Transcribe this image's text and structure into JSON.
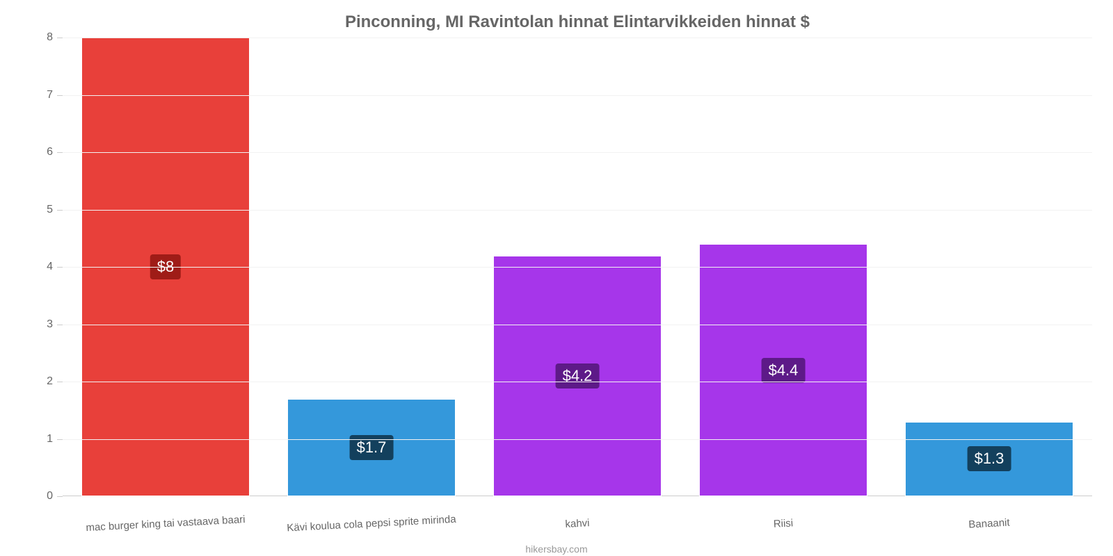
{
  "chart": {
    "type": "bar",
    "title": "Pinconning, MI Ravintolan hinnat Elintarvikkeiden hinnat $",
    "title_color": "#666666",
    "title_fontsize": 24,
    "background_color": "#ffffff",
    "grid_color": "#f2f2f2",
    "axis_line_color": "#cccccc",
    "label_color": "#666666",
    "label_fontsize": 16,
    "x_label_fontsize": 15,
    "ylim": [
      0,
      8
    ],
    "yticks": [
      0,
      1,
      2,
      3,
      4,
      5,
      6,
      7,
      8
    ],
    "bar_width_ratio": 0.82,
    "categories": [
      "mac burger king tai vastaava baari",
      "Kävi koulua cola pepsi sprite mirinda",
      "kahvi",
      "Riisi",
      "Banaanit"
    ],
    "values": [
      8,
      1.7,
      4.2,
      4.4,
      1.3
    ],
    "value_labels": [
      "$8",
      "$1.7",
      "$4.2",
      "$4.4",
      "$1.3"
    ],
    "bar_colors": [
      "#e8403a",
      "#3498db",
      "#a636ea",
      "#a636ea",
      "#3498db"
    ],
    "badge_colors": [
      "#9f1c17",
      "#13405d",
      "#5d1a88",
      "#5d1a88",
      "#13405d"
    ],
    "badge_text_color": "#ffffff",
    "badge_fontsize": 22,
    "credit": "hikersbay.com",
    "credit_color": "#999999"
  }
}
